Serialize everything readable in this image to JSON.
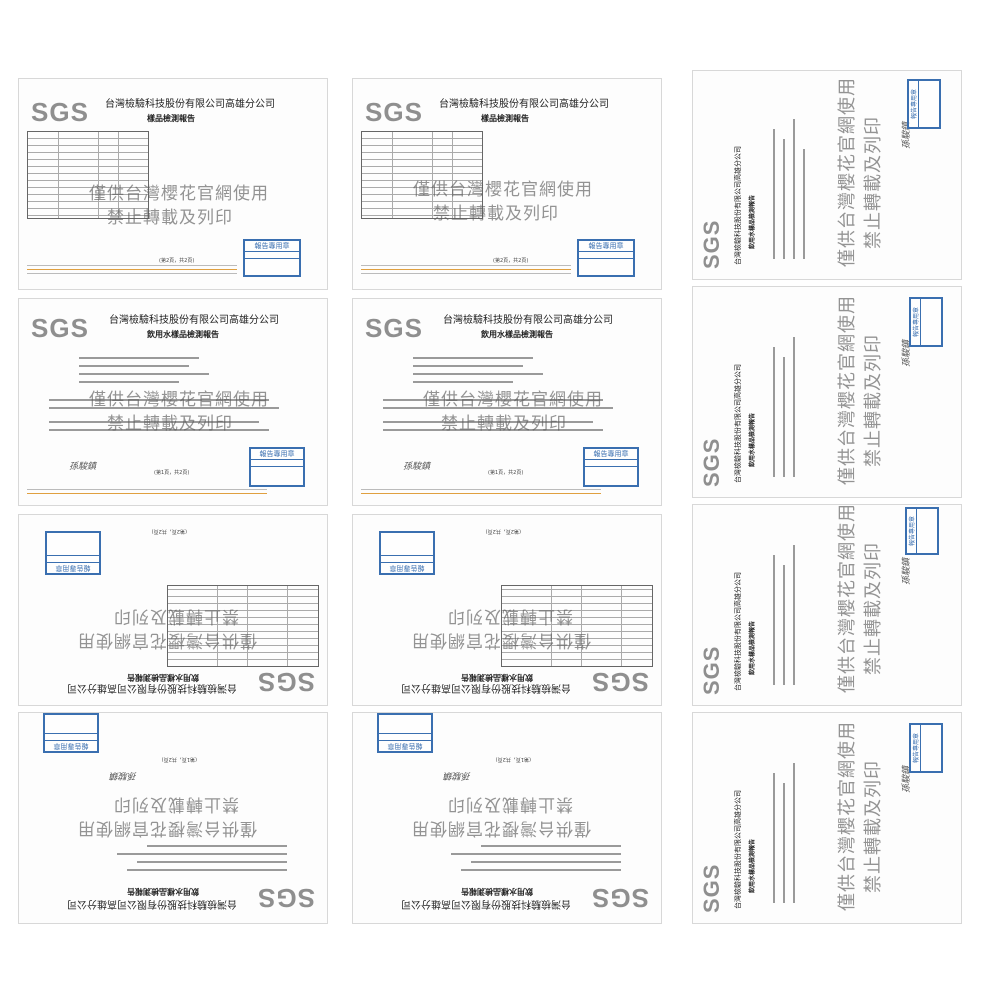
{
  "doc": {
    "logo": "SGS",
    "company": "台灣檢驗科技股份有限公司高雄分公司",
    "title_results": "樣品檢測報告",
    "title_drinking": "飲用水樣品檢測報告",
    "watermark_line1": "僅供台灣櫻花官網使用",
    "watermark_line2": "禁止轉載及列印",
    "stamp_line1": "報告專用章",
    "page_a": "(第2頁，共2頁)",
    "page_b": "(第1頁，共2頁)",
    "signature": "孫駿鎮"
  },
  "accent": {
    "stamp": "#3a6fb0",
    "footer": "#e0a040",
    "logo": "#8f8f8f"
  }
}
